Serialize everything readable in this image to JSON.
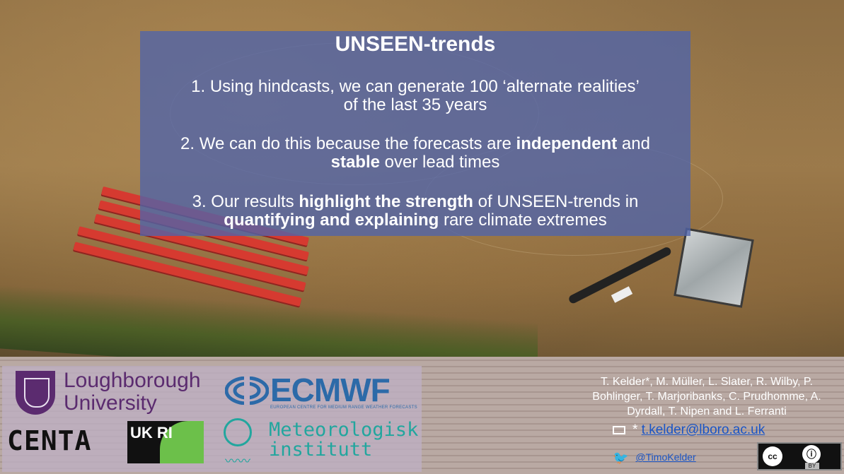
{
  "slide": {
    "title": "UNSEEN-trends",
    "point1": {
      "line1": "1.   Using hindcasts, we can generate 100 ‘alternate realities’",
      "line2": "of the last 35 years"
    },
    "point2": {
      "pre": "2. We can do this because the forecasts are ",
      "bold1": "independent",
      "mid": " and",
      "bold2": "stable",
      "post": " over lead times"
    },
    "point3": {
      "pre": "3. Our results ",
      "bold1": "highlight the strength",
      "post1": " of UNSEEN-trends in",
      "bold2": "quantifying and explaining",
      "post2": " rare climate extremes"
    }
  },
  "logos": {
    "loughborough_line1": "Loughborough",
    "loughborough_line2": "University",
    "ecmwf": "ECMWF",
    "ecmwf_sub": "EUROPEAN CENTRE FOR MEDIUM RANGE WEATHER FORECASTS",
    "centa": "CENTA",
    "ukri": "UK RI",
    "met_line1": "Meteorologisk",
    "met_line2": "institutt"
  },
  "credits": {
    "authors": "T. Kelder*, M. Müller, L. Slater, R. Wilby, P. Bohlinger, T. Marjoribanks, C. Prudhomme, A. Dyrdall, T. Nipen and L. Ferranti",
    "email_prefix": "* ",
    "email": "t.kelder@lboro.ac.uk",
    "twitter": "@TimoKelder"
  },
  "license": {
    "cc": "cc",
    "by": "BY"
  },
  "colors": {
    "panel": "#5064aa",
    "loughborough": "#5b2b6f",
    "ecmwf": "#2c6aa8",
    "met": "#22a69e",
    "link": "#1a55c6"
  }
}
